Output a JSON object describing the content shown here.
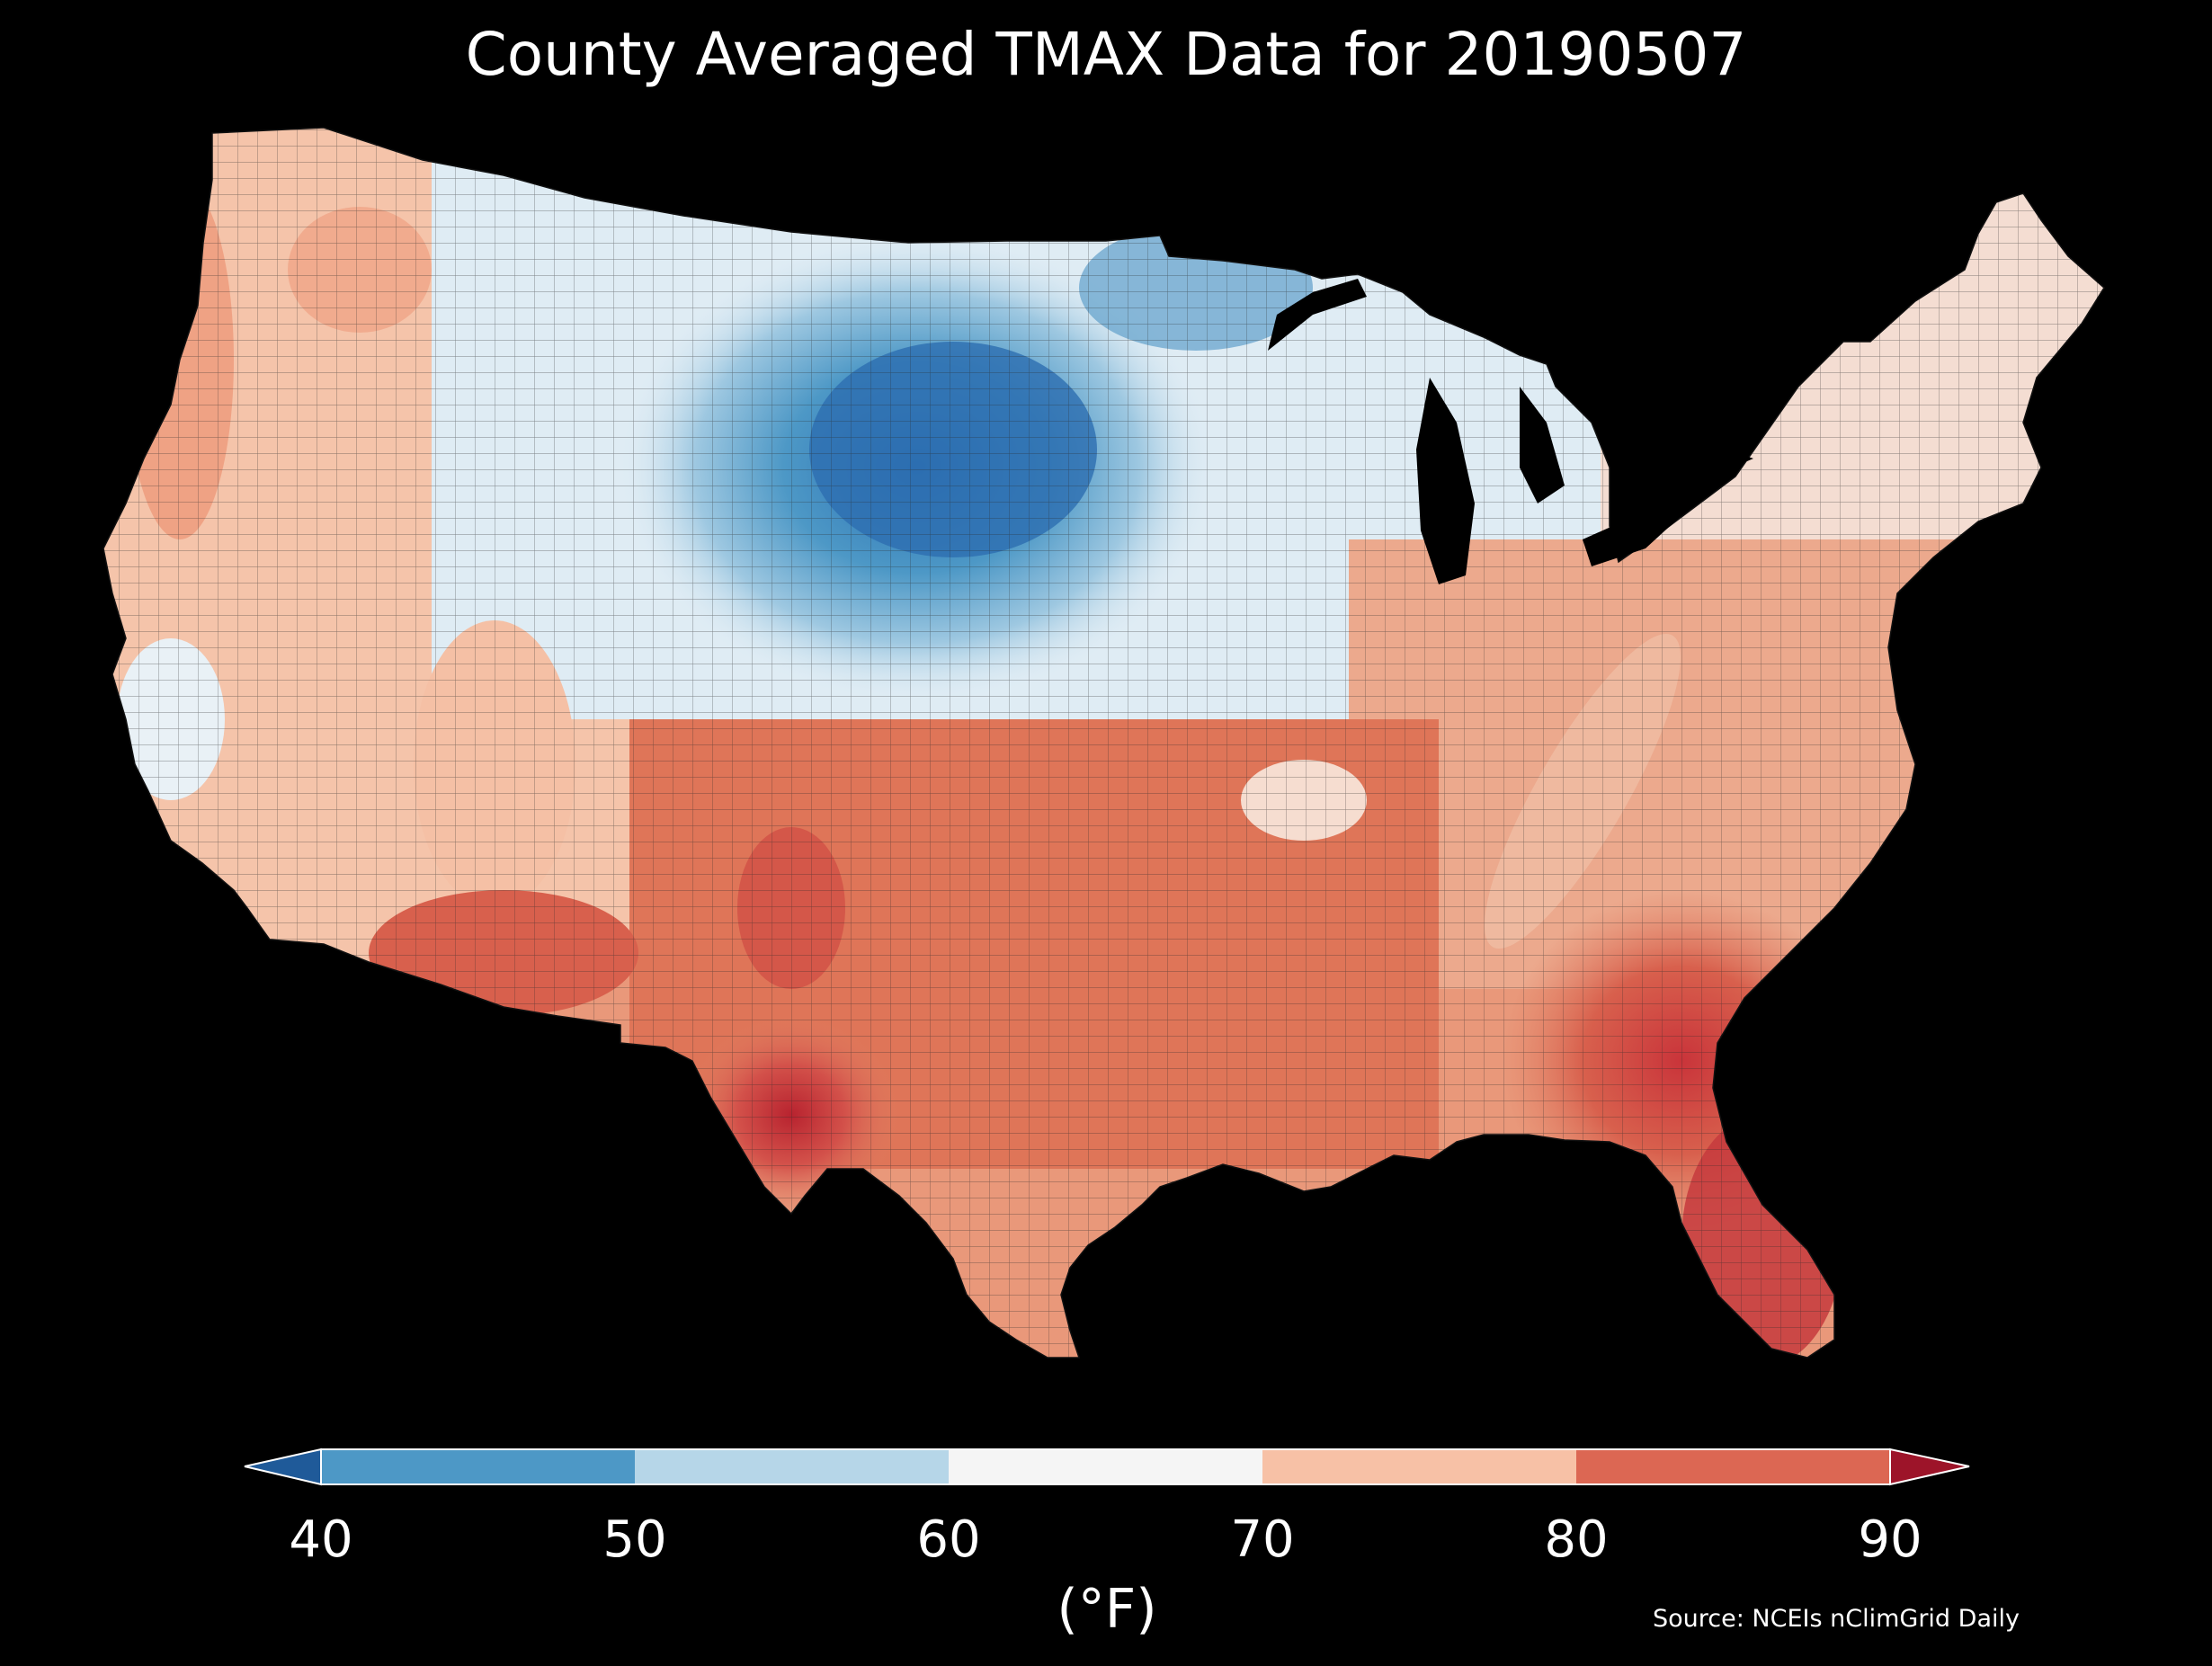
{
  "title": "County Averaged TMAX Data for 20190507",
  "colorbar": {
    "ticks": [
      "40",
      "50",
      "60",
      "70",
      "80",
      "90"
    ],
    "unit": "(°F)",
    "bins": [
      {
        "range": "<40",
        "color": "#1f5a99"
      },
      {
        "range": "40-50",
        "color": "#4d98c6"
      },
      {
        "range": "50-60",
        "color": "#b6d6e8"
      },
      {
        "range": "60-70",
        "color": "#f5f5f5"
      },
      {
        "range": "70-80",
        "color": "#f7c1a6"
      },
      {
        "range": "80-90",
        "color": "#dc6753"
      },
      {
        "range": ">90",
        "color": "#9d1429"
      }
    ]
  },
  "source": "Source: NCEIs nClimGrid Daily",
  "colors": {
    "background": "#000000",
    "border": "#333333"
  }
}
